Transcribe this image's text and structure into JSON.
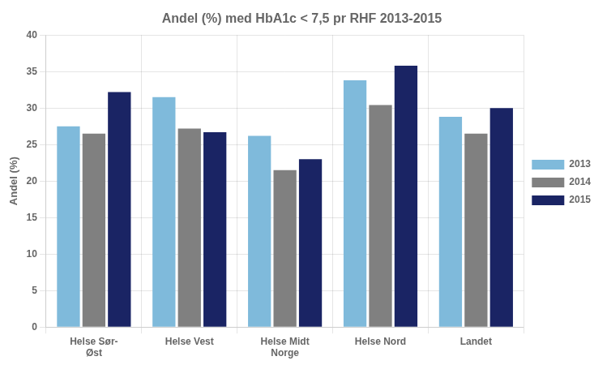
{
  "chart_data": {
    "type": "bar",
    "title": "Andel (%) med HbA1c < 7,5 pr RHF 2013-2015",
    "ylabel": "Andel (%)",
    "categories": [
      "Helse Sør-\nØst",
      "Helse Vest",
      "Helse Midt\nNorge",
      "Helse Nord",
      "Landet"
    ],
    "series": [
      {
        "name": "2013",
        "color": "#7fbadb",
        "values": [
          27.5,
          31.5,
          26.2,
          33.8,
          28.8
        ]
      },
      {
        "name": "2014",
        "color": "#808080",
        "values": [
          26.5,
          27.2,
          21.5,
          30.4,
          26.5
        ]
      },
      {
        "name": "2015",
        "color": "#1a2464",
        "values": [
          32.2,
          26.7,
          23.0,
          35.8,
          30.0
        ]
      }
    ],
    "ylim": [
      0,
      40
    ],
    "yticks": [
      0,
      5,
      10,
      15,
      20,
      25,
      30,
      35,
      40
    ],
    "grid": true,
    "legend": "right"
  }
}
